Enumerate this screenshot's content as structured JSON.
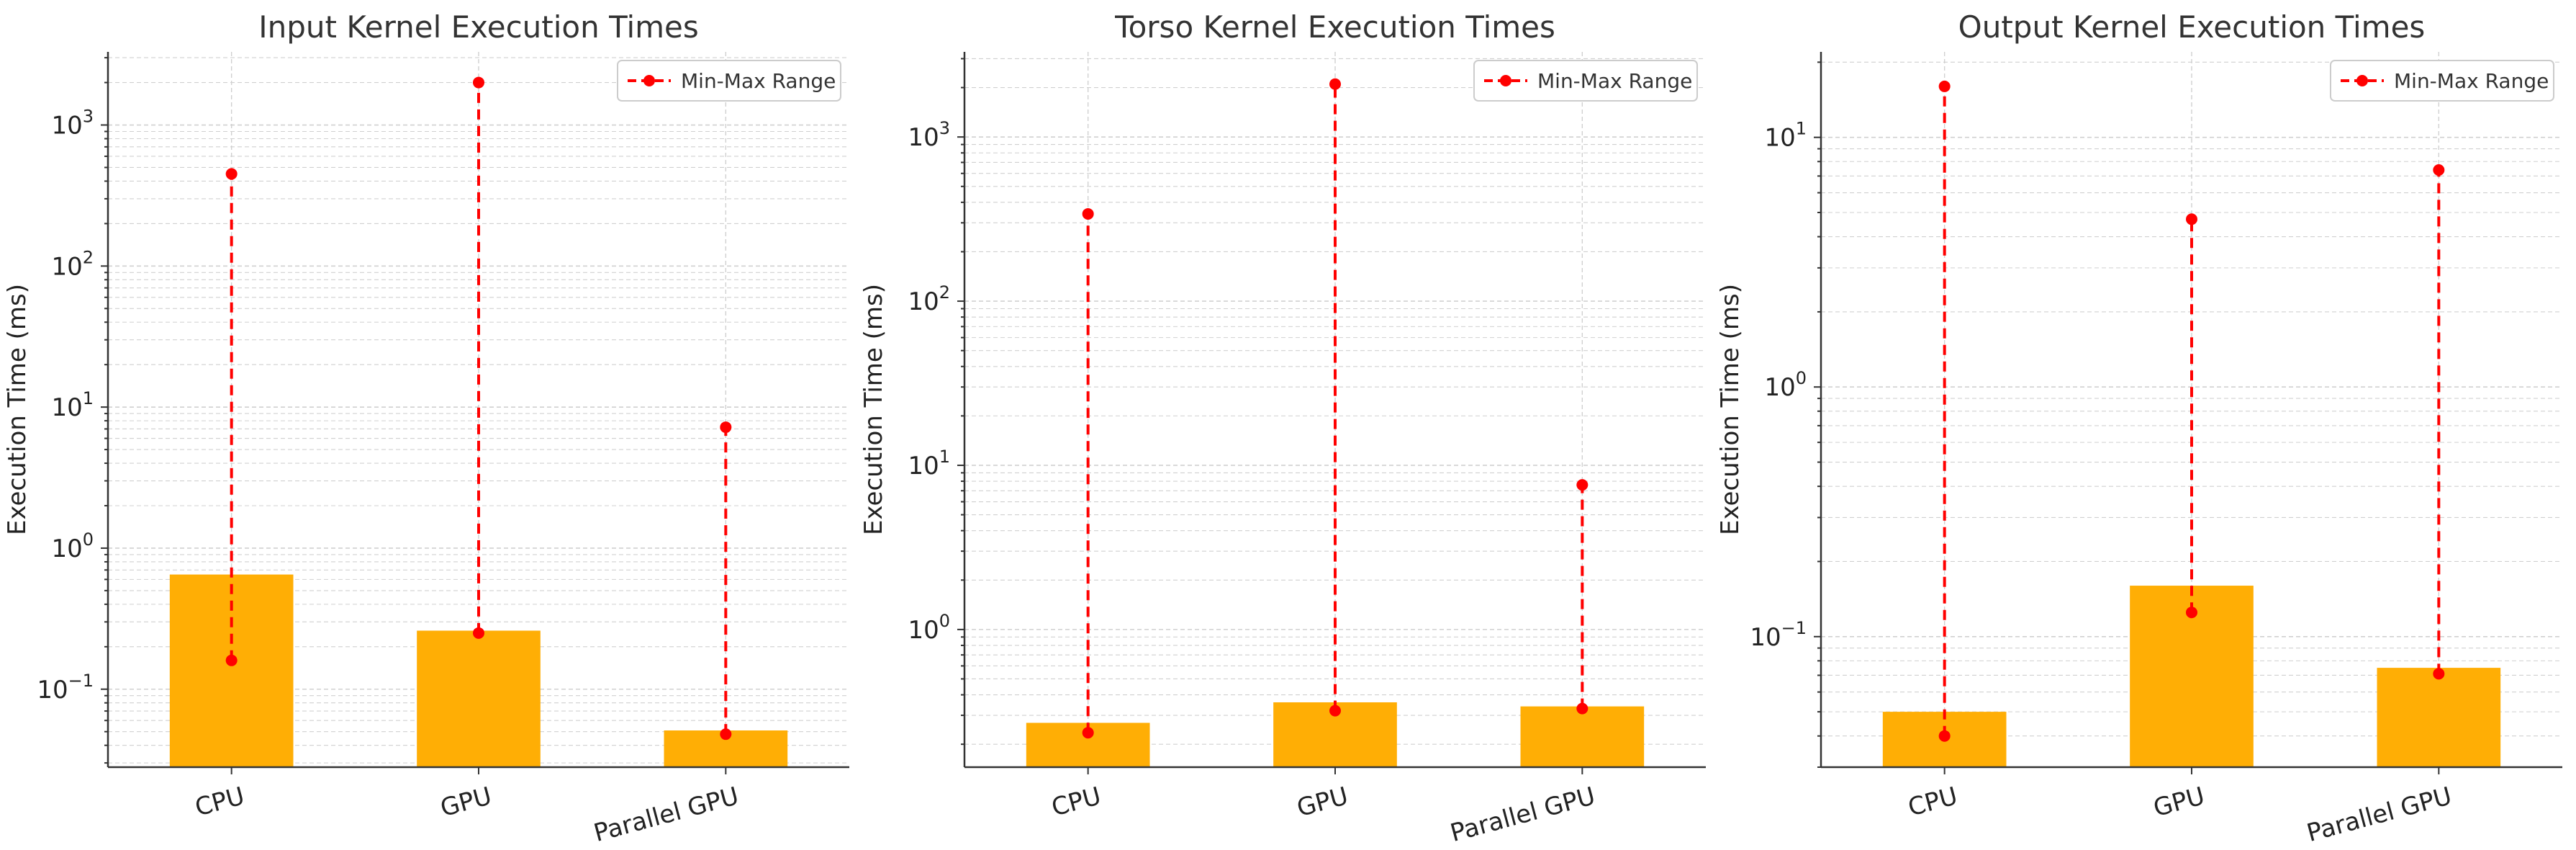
{
  "colors": {
    "bar": "#FFAE05",
    "range": "#FF0000",
    "axis": "#333333",
    "grid": "#d0d0d0",
    "legend_border": "#cccccc"
  },
  "chart_data": [
    {
      "type": "bar",
      "title": "Input Kernel Execution Times",
      "ylabel": "Execution Time (ms)",
      "xlabel": "",
      "yscale": "log",
      "ylim": [
        0.028,
        3300
      ],
      "yticks": [
        {
          "value": 0.1,
          "base": "10",
          "exp": "−1"
        },
        {
          "value": 1,
          "base": "10",
          "exp": "0"
        },
        {
          "value": 10,
          "base": "10",
          "exp": "1"
        },
        {
          "value": 100,
          "base": "10",
          "exp": "2"
        },
        {
          "value": 1000,
          "base": "10",
          "exp": "3"
        }
      ],
      "categories": [
        "CPU",
        "GPU",
        "Parallel GPU"
      ],
      "series": [
        {
          "type": "bar",
          "values": [
            0.65,
            0.26,
            0.051
          ]
        },
        {
          "type": "range",
          "name": "Min-Max Range",
          "min": [
            0.16,
            0.25,
            0.048
          ],
          "max": [
            450,
            2000,
            7.2
          ]
        }
      ],
      "legend": {
        "placement": "upper-right",
        "entries": [
          "Min-Max Range"
        ]
      },
      "grid": "both-major-minor-dashed"
    },
    {
      "type": "bar",
      "title": "Torso Kernel Execution Times",
      "ylabel": "Execution Time (ms)",
      "xlabel": "",
      "yscale": "log",
      "ylim": [
        0.145,
        3300
      ],
      "yticks": [
        {
          "value": 1,
          "base": "10",
          "exp": "0"
        },
        {
          "value": 10,
          "base": "10",
          "exp": "1"
        },
        {
          "value": 100,
          "base": "10",
          "exp": "2"
        },
        {
          "value": 1000,
          "base": "10",
          "exp": "3"
        }
      ],
      "categories": [
        "CPU",
        "GPU",
        "Parallel GPU"
      ],
      "series": [
        {
          "type": "bar",
          "values": [
            0.27,
            0.36,
            0.34
          ]
        },
        {
          "type": "range",
          "name": "Min-Max Range",
          "min": [
            0.235,
            0.32,
            0.33
          ],
          "max": [
            340,
            2100,
            7.6
          ]
        }
      ],
      "legend": {
        "placement": "upper-right",
        "entries": [
          "Min-Max Range"
        ]
      },
      "grid": "both-major-minor-dashed"
    },
    {
      "type": "bar",
      "title": "Output Kernel Execution Times",
      "ylabel": "Execution Time (ms)",
      "xlabel": "",
      "yscale": "log",
      "ylim": [
        0.03,
        22
      ],
      "yticks": [
        {
          "value": 0.1,
          "base": "10",
          "exp": "−1"
        },
        {
          "value": 1,
          "base": "10",
          "exp": "0"
        },
        {
          "value": 10,
          "base": "10",
          "exp": "1"
        }
      ],
      "categories": [
        "CPU",
        "GPU",
        "Parallel GPU"
      ],
      "series": [
        {
          "type": "bar",
          "values": [
            0.05,
            0.16,
            0.075
          ]
        },
        {
          "type": "range",
          "name": "Min-Max Range",
          "min": [
            0.04,
            0.125,
            0.071
          ],
          "max": [
            16,
            4.7,
            7.4
          ]
        }
      ],
      "legend": {
        "placement": "upper-right",
        "entries": [
          "Min-Max Range"
        ]
      },
      "grid": "both-major-minor-dashed"
    }
  ]
}
